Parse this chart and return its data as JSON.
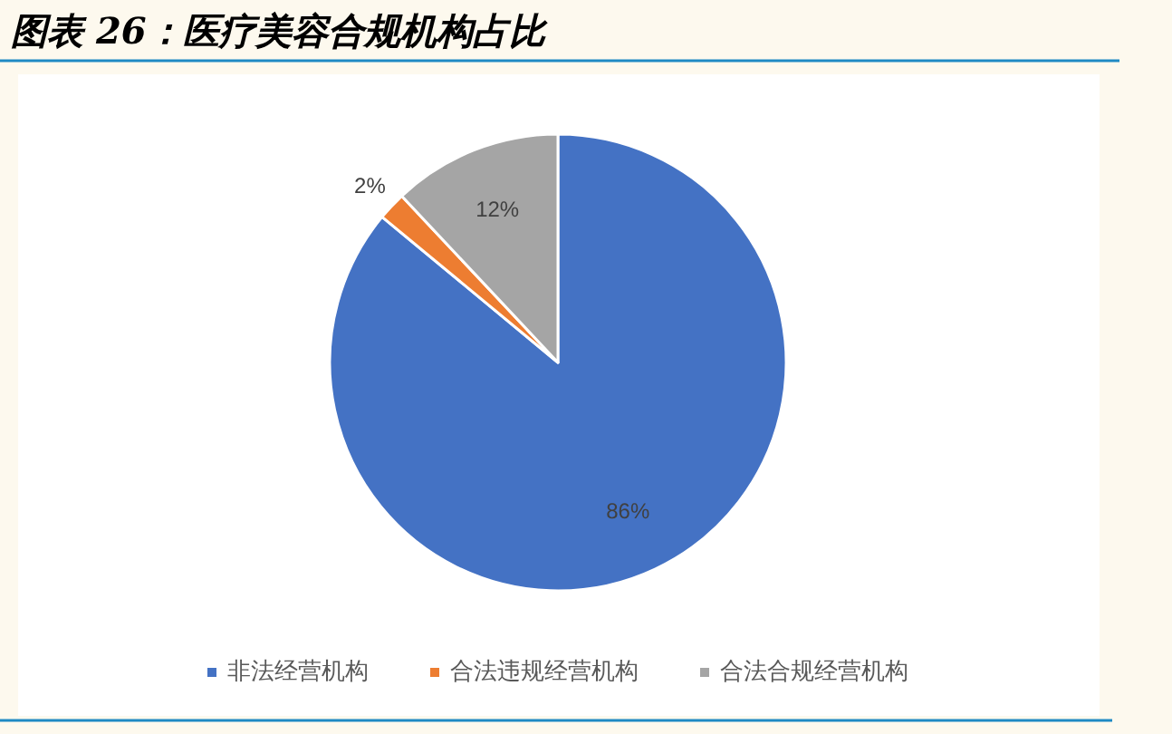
{
  "chart_data": {
    "type": "pie",
    "title": "图表 26：医疗美容合规机构占比",
    "categories": [
      "非法经营机构",
      "合法违规经营机构",
      "合法合规经营机构"
    ],
    "values": [
      86,
      2,
      12
    ],
    "colors": [
      "#4472c4",
      "#ed7d31",
      "#a5a5a5"
    ],
    "value_labels": [
      "86%",
      "2%",
      "12%"
    ],
    "legend": "bottom"
  }
}
